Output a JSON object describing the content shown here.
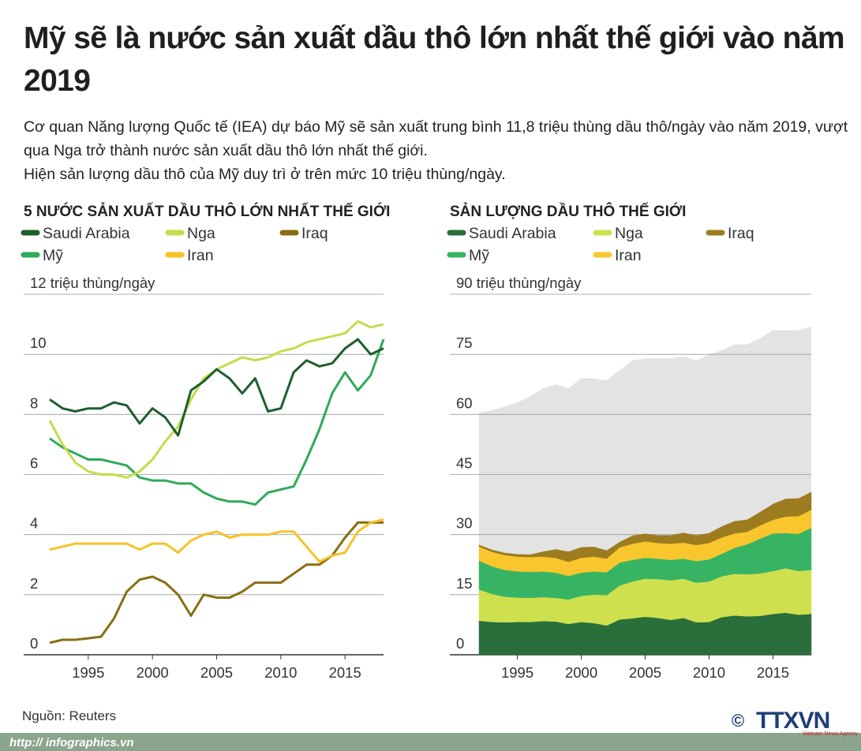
{
  "header": {
    "title": "Mỹ sẽ là nước sản xuất dầu thô lớn nhất thế giới vào năm 2019",
    "description": [
      "Cơ quan Năng lượng Quốc tế (IEA) dự báo Mỹ sẽ sản xuất trung bình 11,8 triệu thùng dầu thô/ngày vào năm 2019, vượt qua Nga trở thành nước sản xuất dầu thô lớn nhất thế giới.",
      "Hiện sản lượng dầu thô của Mỹ duy trì ở trên mức 10 triệu thùng/ngày."
    ]
  },
  "footer": {
    "source": "Nguồn: Reuters",
    "url": "http:// infographics.vn",
    "copyright": "©",
    "logo": "TTXVN",
    "logo_subtitle": "Vietnam News Agency"
  },
  "chart_data": [
    {
      "type": "line",
      "title": "5 NƯỚC SẢN XUẤT DẦU THÔ LỚN NHẤT THẾ GIỚI",
      "x": [
        1992,
        1993,
        1994,
        1995,
        1996,
        1997,
        1998,
        1999,
        2000,
        2001,
        2002,
        2003,
        2004,
        2005,
        2006,
        2007,
        2008,
        2009,
        2010,
        2011,
        2012,
        2013,
        2014,
        2015,
        2016,
        2017,
        2018
      ],
      "xlim": [
        1992,
        2018
      ],
      "xticks": [
        1995,
        2000,
        2005,
        2010,
        2015
      ],
      "ylim": [
        0,
        12
      ],
      "yticks": [
        0,
        2,
        4,
        6,
        8,
        10,
        {
          "value": 12,
          "label": "12 triệu thùng/ngày"
        }
      ],
      "grid": true,
      "series": [
        {
          "name": "Saudi Arabia",
          "color": "#1e5e2e",
          "values": [
            8.5,
            8.2,
            8.1,
            8.2,
            8.2,
            8.4,
            8.3,
            7.7,
            8.2,
            7.9,
            7.3,
            8.8,
            9.1,
            9.5,
            9.2,
            8.7,
            9.2,
            8.1,
            8.2,
            9.4,
            9.8,
            9.6,
            9.7,
            10.2,
            10.5,
            10.0,
            10.2
          ]
        },
        {
          "name": "Nga",
          "color": "#c5dc4a",
          "values": [
            7.8,
            7.0,
            6.4,
            6.1,
            6.0,
            6.0,
            5.9,
            6.1,
            6.5,
            7.1,
            7.6,
            8.5,
            9.2,
            9.5,
            9.7,
            9.9,
            9.8,
            9.9,
            10.1,
            10.2,
            10.4,
            10.5,
            10.6,
            10.7,
            11.1,
            10.9,
            11.0
          ]
        },
        {
          "name": "Iraq",
          "color": "#8a6d13",
          "values": [
            0.4,
            0.5,
            0.5,
            0.55,
            0.6,
            1.2,
            2.1,
            2.5,
            2.6,
            2.4,
            2.0,
            1.3,
            2.0,
            1.9,
            1.9,
            2.1,
            2.4,
            2.4,
            2.4,
            2.7,
            3.0,
            3.0,
            3.3,
            3.9,
            4.4,
            4.4,
            4.4
          ]
        },
        {
          "name": "Mỹ",
          "color": "#2eaa58",
          "values": [
            7.2,
            6.9,
            6.7,
            6.5,
            6.5,
            6.4,
            6.3,
            5.9,
            5.8,
            5.8,
            5.7,
            5.7,
            5.4,
            5.2,
            5.1,
            5.1,
            5.0,
            5.4,
            5.5,
            5.6,
            6.5,
            7.5,
            8.7,
            9.4,
            8.8,
            9.3,
            10.5
          ]
        },
        {
          "name": "Iran",
          "color": "#f7c228",
          "values": [
            3.5,
            3.6,
            3.7,
            3.7,
            3.7,
            3.7,
            3.7,
            3.5,
            3.7,
            3.7,
            3.4,
            3.8,
            4.0,
            4.1,
            3.9,
            4.0,
            4.0,
            4.0,
            4.1,
            4.1,
            3.6,
            3.1,
            3.3,
            3.4,
            4.1,
            4.4,
            4.5
          ]
        }
      ]
    },
    {
      "type": "stacked-area",
      "title": "SẢN LƯỢNG DẦU THÔ THẾ GIỚI",
      "x": [
        1992,
        1993,
        1994,
        1995,
        1996,
        1997,
        1998,
        1999,
        2000,
        2001,
        2002,
        2003,
        2004,
        2005,
        2006,
        2007,
        2008,
        2009,
        2010,
        2011,
        2012,
        2013,
        2014,
        2015,
        2016,
        2017,
        2018
      ],
      "xlim": [
        1992,
        2018
      ],
      "xticks": [
        1995,
        2000,
        2005,
        2010,
        2015
      ],
      "ylim": [
        0,
        90
      ],
      "yticks": [
        0,
        15,
        30,
        45,
        60,
        75,
        {
          "value": 90,
          "label": "90 triệu thùng/ngày"
        }
      ],
      "grid": true,
      "total": {
        "color": "#e3e3e4",
        "values": [
          60.5,
          61,
          62,
          63,
          64.5,
          66.5,
          67.5,
          66.5,
          69,
          69,
          68.5,
          71,
          73.5,
          74,
          74,
          74,
          74.5,
          73.5,
          75,
          76,
          77.5,
          77.5,
          79,
          81,
          81,
          81,
          82
        ]
      },
      "series": [
        {
          "name": "Saudi Arabia",
          "color": "#2a6e3c",
          "values": [
            8.5,
            8.2,
            8.1,
            8.2,
            8.2,
            8.4,
            8.3,
            7.7,
            8.2,
            7.9,
            7.3,
            8.8,
            9.1,
            9.5,
            9.2,
            8.7,
            9.2,
            8.1,
            8.2,
            9.4,
            9.8,
            9.6,
            9.7,
            10.2,
            10.5,
            10.0,
            10.2
          ]
        },
        {
          "name": "Nga",
          "color": "#cfe04f",
          "values": [
            7.8,
            7.0,
            6.4,
            6.1,
            6.0,
            6.0,
            5.9,
            6.1,
            6.5,
            7.1,
            7.6,
            8.5,
            9.2,
            9.5,
            9.7,
            9.9,
            9.8,
            9.9,
            10.1,
            10.2,
            10.4,
            10.5,
            10.6,
            10.7,
            11.1,
            10.9,
            11.0
          ]
        },
        {
          "name": "Iraq",
          "color": "#9c7c1e",
          "values": [
            0.4,
            0.5,
            0.5,
            0.55,
            0.6,
            1.2,
            2.1,
            2.5,
            2.6,
            2.4,
            2.0,
            1.3,
            2.0,
            1.9,
            1.9,
            2.1,
            2.4,
            2.4,
            2.4,
            2.7,
            3.0,
            3.0,
            3.3,
            3.9,
            4.4,
            4.4,
            4.4
          ]
        },
        {
          "name": "Mỹ",
          "color": "#36b463",
          "values": [
            7.2,
            6.9,
            6.7,
            6.5,
            6.5,
            6.4,
            6.3,
            5.9,
            5.8,
            5.8,
            5.7,
            5.7,
            5.4,
            5.2,
            5.1,
            5.1,
            5.0,
            5.4,
            5.5,
            5.6,
            6.5,
            7.5,
            8.7,
            9.4,
            8.8,
            9.3,
            10.5
          ]
        },
        {
          "name": "Iran",
          "color": "#f9c62e",
          "values": [
            3.5,
            3.6,
            3.7,
            3.7,
            3.7,
            3.7,
            3.7,
            3.5,
            3.7,
            3.7,
            3.4,
            3.8,
            4.0,
            4.1,
            3.9,
            4.0,
            4.0,
            4.0,
            4.1,
            4.1,
            3.6,
            3.1,
            3.3,
            3.4,
            4.1,
            4.4,
            4.5
          ]
        }
      ]
    }
  ]
}
